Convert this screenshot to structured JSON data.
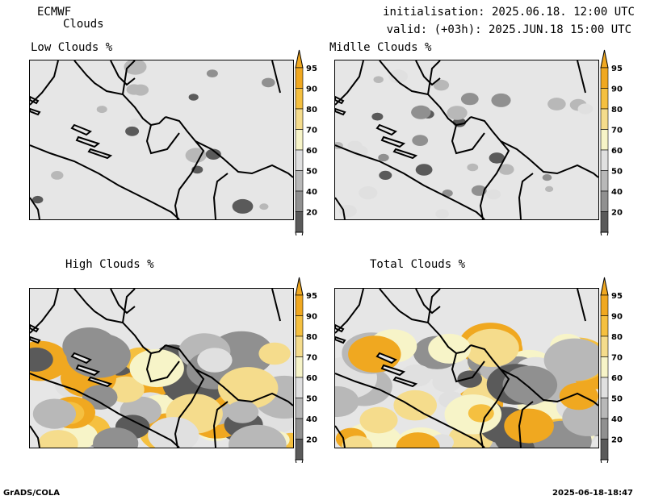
{
  "header": {
    "model": "ECMWF",
    "product": "Clouds",
    "init": "initialisation: 2025.06.18. 12:00 UTC",
    "valid": "valid: (+03h): 2025.JUN.18 15:00 UTC"
  },
  "panels": [
    {
      "title": "Low Clouds %",
      "intensity": 0.1
    },
    {
      "title": "Midlle Clouds %",
      "intensity": 0.3
    },
    {
      "title": "High Clouds %",
      "intensity": 0.8
    },
    {
      "title": "Total Clouds %",
      "intensity": 0.9
    }
  ],
  "colorbar": {
    "levels": [
      "95",
      "90",
      "80",
      "70",
      "60",
      "50",
      "40",
      "20"
    ],
    "colors": [
      "#f0a820",
      "#f5c040",
      "#f5dc8c",
      "#f7f4c8",
      "#e0e0e0",
      "#b8b8b8",
      "#909090",
      "#5a5a5a"
    ]
  },
  "footer": {
    "left": "GrADS/COLA",
    "right": "2025-06-18-18:47"
  }
}
